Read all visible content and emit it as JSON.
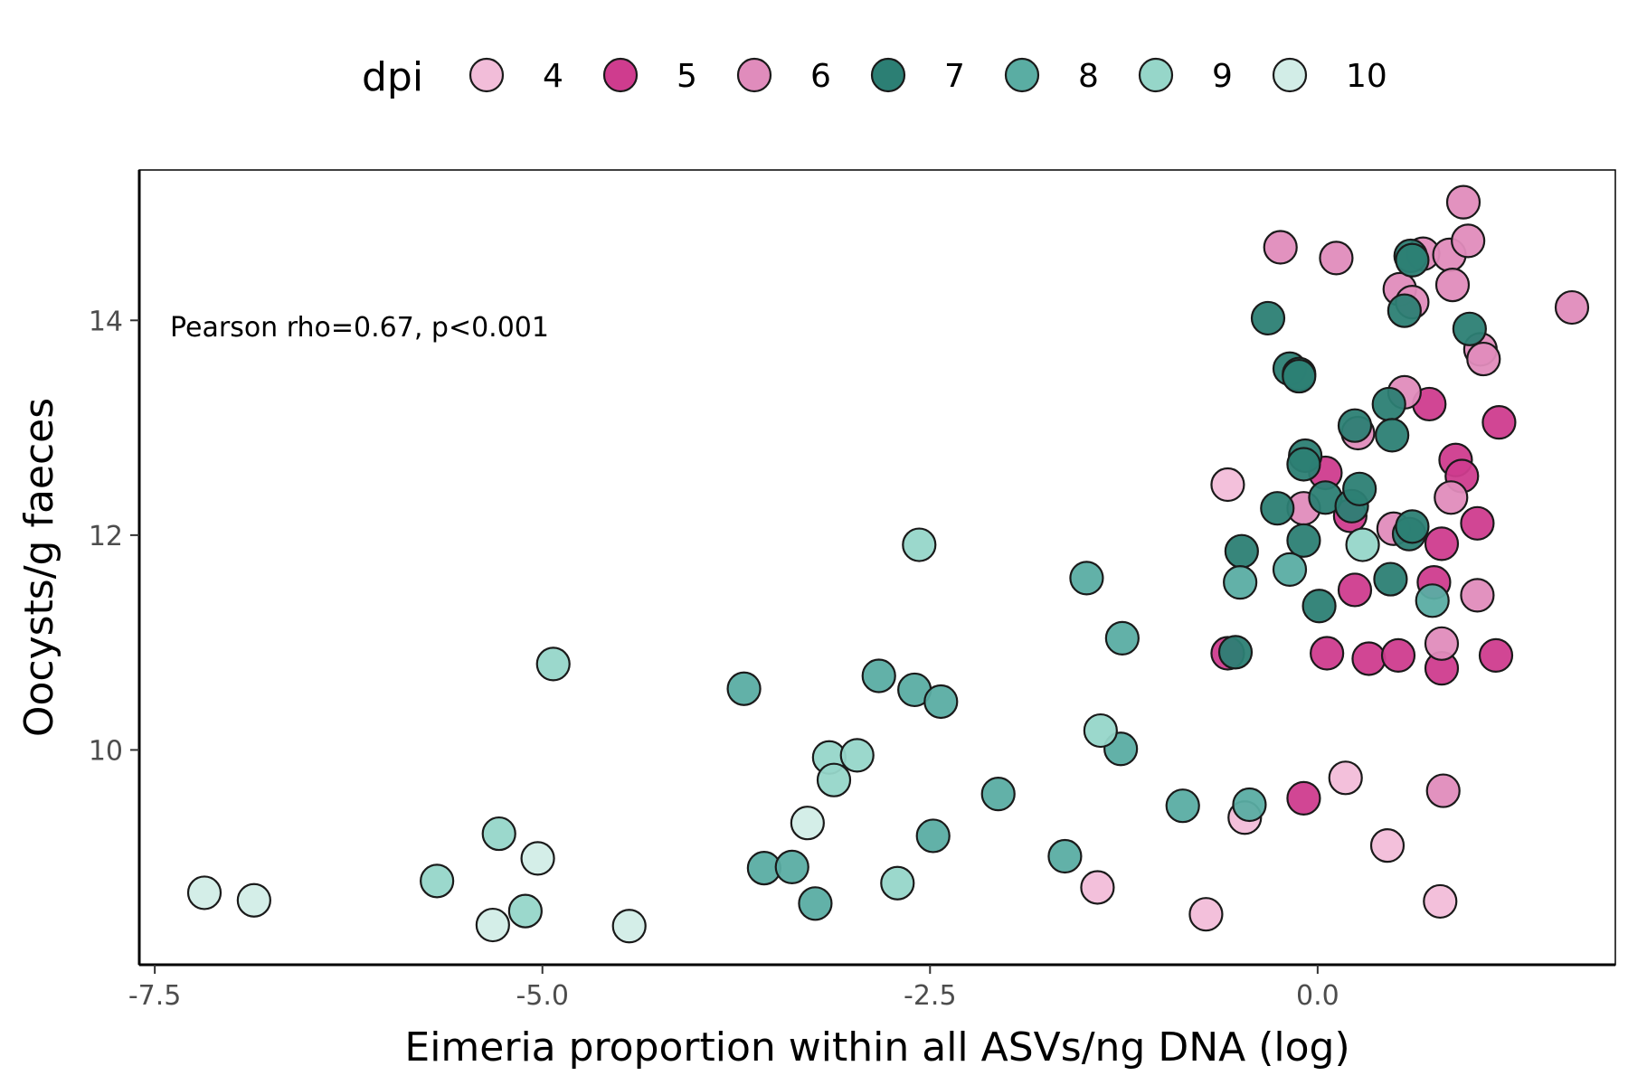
{
  "chart_data": {
    "type": "scatter",
    "xlabel": "Eimeria proportion within all ASVs/ng DNA (log)",
    "ylabel": "Oocysts/g faeces",
    "xlim": [
      -7.6,
      1.92
    ],
    "ylim": [
      8.0,
      15.4
    ],
    "x_ticks": [
      -7.5,
      -5.0,
      -2.5,
      0.0
    ],
    "x_tick_labels": [
      "-7.5",
      "-5.0",
      "-2.5",
      "0.0"
    ],
    "y_ticks": [
      10,
      12,
      14
    ],
    "y_tick_labels": [
      "10",
      "12",
      "14"
    ],
    "grid": false,
    "legend_title": "dpi",
    "legend_position": "top",
    "annotation": "Pearson rho=0.67, p<0.001",
    "series": [
      {
        "name": "4",
        "color": "#f2bdd9",
        "points": [
          [
            -1.42,
            8.72
          ],
          [
            -0.72,
            8.47
          ],
          [
            -0.47,
            9.37
          ],
          [
            0.18,
            9.74
          ],
          [
            0.45,
            9.11
          ],
          [
            0.79,
            8.59
          ],
          [
            -0.58,
            12.47
          ]
        ]
      },
      {
        "name": "5",
        "color": "#cf3c8e",
        "points": [
          [
            0.05,
            12.58
          ],
          [
            0.21,
            12.18
          ],
          [
            0.24,
            11.49
          ],
          [
            0.06,
            10.9
          ],
          [
            0.33,
            10.85
          ],
          [
            0.52,
            10.88
          ],
          [
            0.75,
            11.56
          ],
          [
            0.8,
            11.92
          ],
          [
            0.8,
            10.76
          ],
          [
            0.89,
            12.7
          ],
          [
            0.93,
            12.55
          ],
          [
            1.03,
            12.11
          ],
          [
            1.17,
            13.05
          ],
          [
            1.15,
            10.88
          ],
          [
            0.72,
            13.22
          ],
          [
            -0.09,
            9.55
          ],
          [
            -0.58,
            10.9
          ]
        ]
      },
      {
        "name": "6",
        "color": "#e08cbc",
        "points": [
          [
            -0.24,
            14.68
          ],
          [
            0.12,
            14.58
          ],
          [
            0.53,
            14.29
          ],
          [
            0.61,
            14.17
          ],
          [
            0.68,
            14.62
          ],
          [
            0.85,
            14.61
          ],
          [
            0.94,
            15.1
          ],
          [
            0.97,
            14.74
          ],
          [
            0.87,
            14.33
          ],
          [
            1.05,
            13.73
          ],
          [
            1.07,
            13.64
          ],
          [
            1.64,
            14.12
          ],
          [
            0.56,
            13.33
          ],
          [
            0.26,
            12.95
          ],
          [
            -0.09,
            12.25
          ],
          [
            0.49,
            12.06
          ],
          [
            0.86,
            12.35
          ],
          [
            1.03,
            11.44
          ],
          [
            0.8,
            10.99
          ],
          [
            0.81,
            9.62
          ]
        ]
      },
      {
        "name": "7",
        "color": "#2c7f74",
        "points": [
          [
            -0.32,
            14.02
          ],
          [
            -0.18,
            13.55
          ],
          [
            -0.12,
            13.5
          ],
          [
            -0.12,
            13.48
          ],
          [
            -0.08,
            12.74
          ],
          [
            -0.09,
            12.66
          ],
          [
            0.05,
            12.35
          ],
          [
            0.22,
            12.27
          ],
          [
            0.24,
            13.02
          ],
          [
            0.46,
            13.22
          ],
          [
            0.48,
            12.93
          ],
          [
            0.27,
            12.43
          ],
          [
            -0.26,
            12.25
          ],
          [
            -0.09,
            11.95
          ],
          [
            -0.49,
            11.85
          ],
          [
            0.01,
            11.34
          ],
          [
            0.47,
            11.59
          ],
          [
            0.59,
            12.01
          ],
          [
            0.61,
            12.08
          ],
          [
            0.6,
            14.6
          ],
          [
            0.56,
            14.09
          ],
          [
            0.61,
            14.56
          ],
          [
            0.98,
            13.92
          ],
          [
            -0.53,
            10.91
          ]
        ]
      },
      {
        "name": "8",
        "color": "#5aada3",
        "points": [
          [
            -1.49,
            11.6
          ],
          [
            -1.26,
            11.04
          ],
          [
            -1.27,
            10.01
          ],
          [
            -0.87,
            9.48
          ],
          [
            -0.44,
            9.49
          ],
          [
            -1.63,
            9.01
          ],
          [
            -2.06,
            9.59
          ],
          [
            -2.48,
            9.2
          ],
          [
            -2.83,
            10.69
          ],
          [
            -2.6,
            10.56
          ],
          [
            -2.43,
            10.45
          ],
          [
            -3.7,
            10.57
          ],
          [
            -3.57,
            8.9
          ],
          [
            -3.39,
            8.91
          ],
          [
            -3.24,
            8.57
          ],
          [
            -0.18,
            11.68
          ],
          [
            -0.5,
            11.56
          ],
          [
            0.74,
            11.39
          ]
        ]
      },
      {
        "name": "9",
        "color": "#96d6c9",
        "points": [
          [
            -2.57,
            11.91
          ],
          [
            -4.93,
            10.8
          ],
          [
            -1.4,
            10.18
          ],
          [
            -3.15,
            9.93
          ],
          [
            -2.97,
            9.95
          ],
          [
            -3.12,
            9.72
          ],
          [
            -5.28,
            9.22
          ],
          [
            -5.68,
            8.78
          ],
          [
            -5.11,
            8.5
          ],
          [
            -2.71,
            8.76
          ],
          [
            0.29,
            11.91
          ]
        ]
      },
      {
        "name": "10",
        "color": "#d2ede7",
        "points": [
          [
            -7.18,
            8.67
          ],
          [
            -6.86,
            8.6
          ],
          [
            -5.03,
            8.99
          ],
          [
            -3.29,
            9.32
          ],
          [
            -5.32,
            8.37
          ],
          [
            -4.44,
            8.36
          ]
        ]
      }
    ]
  }
}
